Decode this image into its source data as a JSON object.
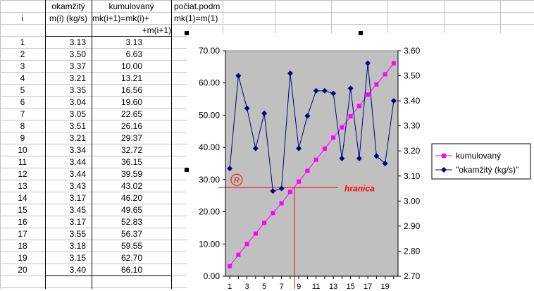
{
  "sheet": {
    "headers_row1": {
      "a": "",
      "b": "okamžitý",
      "c": "kumulovaný",
      "d": "počiat.podm"
    },
    "headers_row2": {
      "a": "i",
      "b": "m(i) (kg/s)",
      "c": "mk(i+1)=mk(i)+",
      "d": "mk(1)=m(1)"
    },
    "headers_row3": {
      "c": "+m(i+1)"
    },
    "rows": [
      {
        "i": "1",
        "m": "3.13",
        "mk": "3.13"
      },
      {
        "i": "2",
        "m": "3.50",
        "mk": "6.63"
      },
      {
        "i": "3",
        "m": "3.37",
        "mk": "10.00"
      },
      {
        "i": "4",
        "m": "3.21",
        "mk": "13.21"
      },
      {
        "i": "5",
        "m": "3.35",
        "mk": "16.56"
      },
      {
        "i": "6",
        "m": "3.04",
        "mk": "19.60"
      },
      {
        "i": "7",
        "m": "3.05",
        "mk": "22.65"
      },
      {
        "i": "8",
        "m": "3.51",
        "mk": "26.16"
      },
      {
        "i": "9",
        "m": "3.21",
        "mk": "29.37"
      },
      {
        "i": "10",
        "m": "3.34",
        "mk": "32.72"
      },
      {
        "i": "11",
        "m": "3.44",
        "mk": "36.15"
      },
      {
        "i": "12",
        "m": "3.44",
        "mk": "39.59"
      },
      {
        "i": "13",
        "m": "3.43",
        "mk": "43.02"
      },
      {
        "i": "14",
        "m": "3.17",
        "mk": "46.20"
      },
      {
        "i": "15",
        "m": "3.45",
        "mk": "49.65"
      },
      {
        "i": "16",
        "m": "3.17",
        "mk": "52.83"
      },
      {
        "i": "17",
        "m": "3.55",
        "mk": "56.37"
      },
      {
        "i": "18",
        "m": "3.18",
        "mk": "59.55"
      },
      {
        "i": "19",
        "m": "3.15",
        "mk": "62.70"
      },
      {
        "i": "20",
        "m": "3.40",
        "mk": "66.10"
      }
    ]
  },
  "chart_data": {
    "type": "line",
    "x": [
      1,
      2,
      3,
      4,
      5,
      6,
      7,
      8,
      9,
      10,
      11,
      12,
      13,
      14,
      15,
      16,
      17,
      18,
      19,
      20
    ],
    "x_tick_labels": [
      "1",
      "3",
      "5",
      "7",
      "9",
      "11",
      "13",
      "15",
      "17",
      "19"
    ],
    "series": [
      {
        "name": "kumulovaný",
        "axis": "left",
        "color": "#ff00ff",
        "marker": "square",
        "values": [
          3.13,
          6.63,
          10.0,
          13.21,
          16.56,
          19.6,
          22.65,
          26.16,
          29.37,
          32.72,
          36.15,
          39.59,
          43.02,
          46.2,
          49.65,
          52.83,
          56.37,
          59.55,
          62.7,
          66.1
        ]
      },
      {
        "name": "\"okamžitý (kg/s)\"",
        "axis": "right",
        "color": "#000080",
        "marker": "diamond",
        "values": [
          3.13,
          3.5,
          3.37,
          3.21,
          3.35,
          3.04,
          3.05,
          3.51,
          3.21,
          3.34,
          3.44,
          3.44,
          3.43,
          3.17,
          3.45,
          3.17,
          3.55,
          3.18,
          3.15,
          3.4
        ]
      }
    ],
    "ylim_left": [
      0,
      70
    ],
    "yticks_left": [
      "0.00",
      "10.00",
      "20.00",
      "30.00",
      "40.00",
      "50.00",
      "60.00",
      "70.00"
    ],
    "ylim_right": [
      2.7,
      3.6
    ],
    "yticks_right": [
      "2.70",
      "2.80",
      "2.90",
      "3.00",
      "3.10",
      "3.20",
      "3.30",
      "3.40",
      "3.50",
      "3.60"
    ],
    "plot_background": "#c0c0c0",
    "legend_position": "right",
    "annotation": {
      "text": "hranica",
      "color": "#ff0000",
      "marker_text": "R",
      "level": 27.5,
      "x": 8.5
    }
  }
}
